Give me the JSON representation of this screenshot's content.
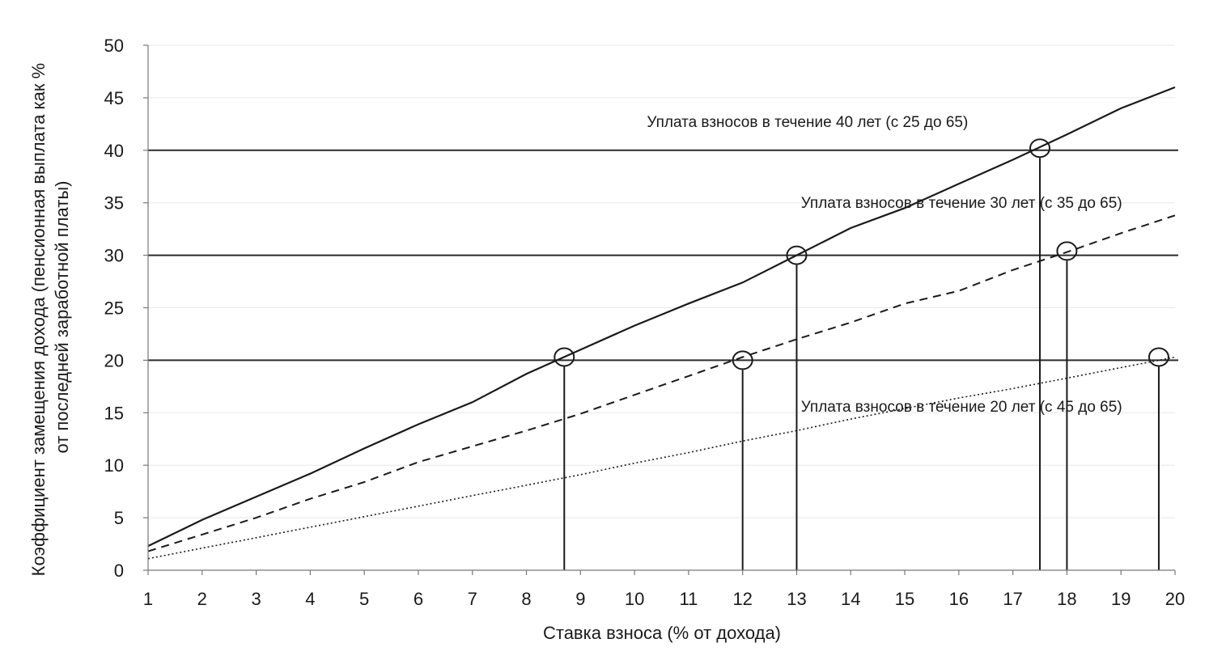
{
  "chart_data": {
    "type": "line",
    "title": "",
    "xlabel": "Ставка взноса (% от дохода)",
    "ylabel": [
      "Коэффициент замещения дохода (пенсионная выплата как %",
      "от последней заработной платы)"
    ],
    "xlim": [
      1,
      20
    ],
    "ylim": [
      0,
      50
    ],
    "x_ticks": [
      "1",
      "2",
      "3",
      "4",
      "5",
      "6",
      "7",
      "8",
      "9",
      "10",
      "11",
      "12",
      "13",
      "14",
      "15",
      "16",
      "17",
      "18",
      "19",
      "20"
    ],
    "y_ticks": [
      "0",
      "5",
      "10",
      "15",
      "20",
      "25",
      "30",
      "35",
      "40",
      "45",
      "50"
    ],
    "grid": "horizontal",
    "reference_lines_y": [
      20,
      30,
      40
    ],
    "series": [
      {
        "name": "Уплата взносов в течение 40 лет (с 25 до 65)",
        "style": "solid",
        "x": [
          1,
          2,
          3,
          4,
          5,
          6,
          7,
          8,
          9,
          10,
          11,
          12,
          13,
          14,
          15,
          16,
          17,
          18,
          19,
          20
        ],
        "y": [
          2.3,
          4.8,
          7.0,
          9.2,
          11.6,
          13.9,
          16.0,
          18.7,
          21.0,
          23.3,
          25.4,
          27.4,
          30.0,
          32.6,
          34.5,
          36.8,
          39.1,
          41.5,
          44.0,
          46.0
        ]
      },
      {
        "name": "Уплата взносов в течение 30 лет (с 35 до 65)",
        "style": "dashed",
        "x": [
          1,
          2,
          3,
          4,
          5,
          6,
          7,
          8,
          9,
          10,
          11,
          12,
          13,
          14,
          15,
          16,
          17,
          18,
          19,
          20
        ],
        "y": [
          1.8,
          3.4,
          5.0,
          6.8,
          8.4,
          10.3,
          11.8,
          13.3,
          14.9,
          16.7,
          18.5,
          20.3,
          22.0,
          23.6,
          25.4,
          26.6,
          28.6,
          30.3,
          32.1,
          33.8
        ]
      },
      {
        "name": "Уплата взносов в течение 20 лет (с 45 до 65)",
        "style": "dotted",
        "x": [
          1,
          2,
          3,
          4,
          5,
          6,
          7,
          8,
          9,
          10,
          11,
          12,
          13,
          14,
          15,
          16,
          17,
          18,
          19,
          20
        ],
        "y": [
          1.1,
          2.1,
          3.1,
          4.1,
          5.1,
          6.1,
          7.1,
          8.1,
          9.1,
          10.2,
          11.2,
          12.3,
          13.3,
          14.4,
          15.4,
          16.4,
          17.3,
          18.3,
          19.3,
          20.3
        ]
      }
    ],
    "markers": [
      {
        "x": 8.7,
        "y": 20.3
      },
      {
        "x": 12.0,
        "y": 20.0
      },
      {
        "x": 13.0,
        "y": 30.0
      },
      {
        "x": 17.5,
        "y": 40.2
      },
      {
        "x": 18.0,
        "y": 30.4
      },
      {
        "x": 19.7,
        "y": 20.3
      }
    ],
    "annotations": [
      {
        "text": "Уплата взносов в течение 40 лет (с 25 до 65)",
        "x": 13.2,
        "y": 42.2
      },
      {
        "text": "Уплата взносов в течение 30 лет (с 35 до 65)",
        "x": 16.05,
        "y": 34.5
      },
      {
        "text": "Уплата взносов в течение 20 лет (с 45 до 65)",
        "x": 16.05,
        "y": 15.1
      }
    ]
  }
}
